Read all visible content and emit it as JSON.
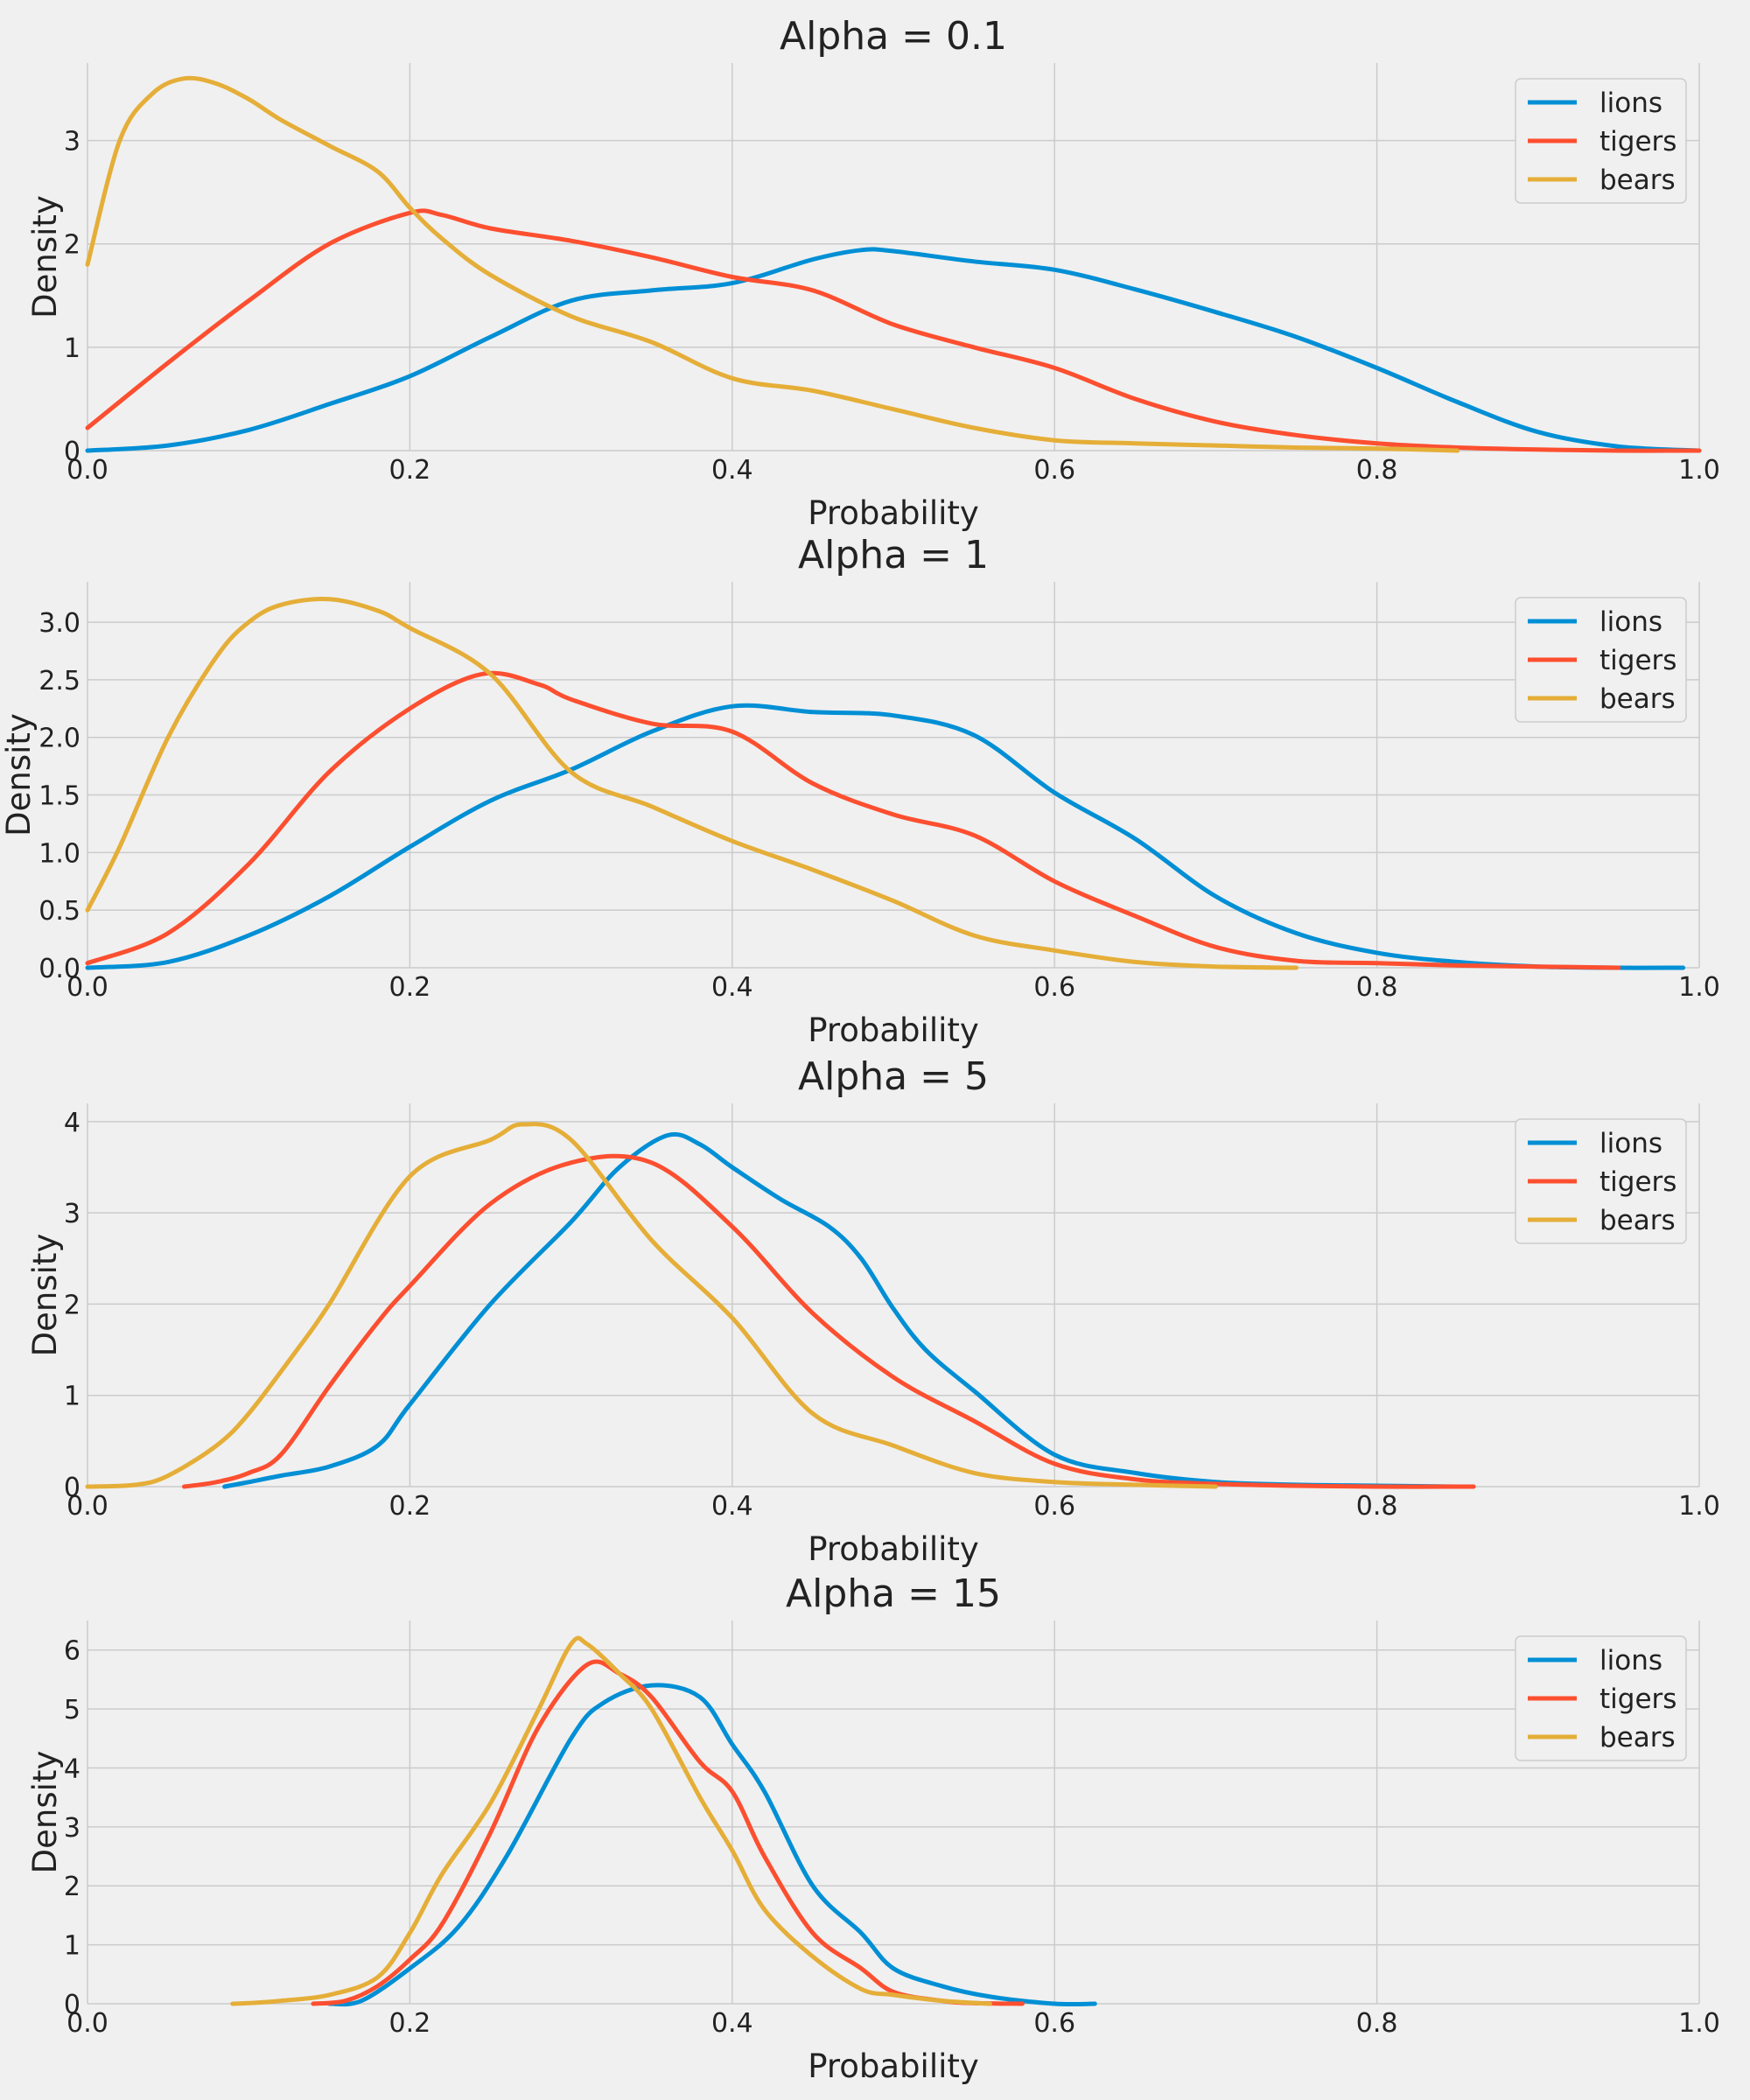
{
  "figure": {
    "background": "#f0f0f0"
  },
  "colors": {
    "lions": "#008fd5",
    "tigers": "#fc4f30",
    "bears": "#e5ae38"
  },
  "chart_data": [
    {
      "type": "line",
      "title": "Alpha = 0.1",
      "xlabel": "Probability",
      "ylabel": "Density",
      "xlim": [
        0,
        1
      ],
      "ylim": [
        0,
        3.75
      ],
      "xticks": [
        0,
        0.2,
        0.4,
        0.6,
        0.8,
        1.0
      ],
      "xtick_labels": [
        "0.0",
        "0.2",
        "0.4",
        "0.6",
        "0.8",
        "1.0"
      ],
      "yticks": [
        0,
        1,
        2,
        3
      ],
      "ytick_labels": [
        "0",
        "1",
        "2",
        "3"
      ],
      "grid": true,
      "legend_position": "top-right",
      "series": [
        {
          "name": "lions",
          "x": [
            0,
            0.05,
            0.1,
            0.15,
            0.2,
            0.25,
            0.3,
            0.35,
            0.4,
            0.45,
            0.48,
            0.5,
            0.55,
            0.6,
            0.65,
            0.7,
            0.75,
            0.8,
            0.85,
            0.9,
            0.95,
            1.0
          ],
          "y": [
            0,
            0.05,
            0.2,
            0.45,
            0.72,
            1.1,
            1.45,
            1.55,
            1.62,
            1.85,
            1.94,
            1.93,
            1.83,
            1.75,
            1.56,
            1.34,
            1.1,
            0.8,
            0.47,
            0.18,
            0.04,
            0
          ]
        },
        {
          "name": "tigers",
          "x": [
            0,
            0.05,
            0.1,
            0.15,
            0.2,
            0.22,
            0.25,
            0.3,
            0.35,
            0.4,
            0.45,
            0.5,
            0.55,
            0.6,
            0.65,
            0.7,
            0.75,
            0.8,
            0.85,
            0.9,
            0.95,
            1.0
          ],
          "y": [
            0.22,
            0.85,
            1.45,
            2.0,
            2.3,
            2.28,
            2.15,
            2.03,
            1.87,
            1.68,
            1.55,
            1.22,
            1.0,
            0.8,
            0.5,
            0.28,
            0.15,
            0.07,
            0.03,
            0.01,
            0,
            0
          ]
        },
        {
          "name": "bears",
          "x": [
            0,
            0.02,
            0.04,
            0.06,
            0.08,
            0.1,
            0.12,
            0.15,
            0.18,
            0.2,
            0.22,
            0.25,
            0.3,
            0.35,
            0.4,
            0.45,
            0.5,
            0.55,
            0.6,
            0.65,
            0.7,
            0.75,
            0.8,
            0.85
          ],
          "y": [
            1.8,
            3.0,
            3.45,
            3.6,
            3.55,
            3.4,
            3.2,
            2.95,
            2.7,
            2.35,
            2.05,
            1.7,
            1.3,
            1.05,
            0.7,
            0.58,
            0.4,
            0.22,
            0.1,
            0.07,
            0.05,
            0.03,
            0.02,
            0
          ]
        }
      ]
    },
    {
      "type": "line",
      "title": "Alpha = 1",
      "xlabel": "Probability",
      "ylabel": "Density",
      "xlim": [
        0,
        1
      ],
      "ylim": [
        0,
        3.35
      ],
      "xticks": [
        0,
        0.2,
        0.4,
        0.6,
        0.8,
        1.0
      ],
      "xtick_labels": [
        "0.0",
        "0.2",
        "0.4",
        "0.6",
        "0.8",
        "1.0"
      ],
      "yticks": [
        0,
        0.5,
        1.0,
        1.5,
        2.0,
        2.5,
        3.0
      ],
      "ytick_labels": [
        "0.0",
        "0.5",
        "1.0",
        "1.5",
        "2.0",
        "2.5",
        "3.0"
      ],
      "grid": true,
      "legend_position": "top-right",
      "series": [
        {
          "name": "lions",
          "x": [
            0,
            0.05,
            0.1,
            0.15,
            0.2,
            0.25,
            0.3,
            0.35,
            0.4,
            0.45,
            0.5,
            0.55,
            0.6,
            0.65,
            0.7,
            0.75,
            0.8,
            0.85,
            0.9,
            0.95,
            0.99
          ],
          "y": [
            0,
            0.05,
            0.28,
            0.62,
            1.05,
            1.45,
            1.72,
            2.05,
            2.27,
            2.22,
            2.19,
            2.02,
            1.52,
            1.12,
            0.62,
            0.3,
            0.13,
            0.05,
            0.01,
            0,
            0
          ]
        },
        {
          "name": "tigers",
          "x": [
            0,
            0.05,
            0.1,
            0.15,
            0.2,
            0.245,
            0.28,
            0.3,
            0.35,
            0.4,
            0.45,
            0.5,
            0.55,
            0.6,
            0.65,
            0.7,
            0.75,
            0.8,
            0.85,
            0.9,
            0.95
          ],
          "y": [
            0.04,
            0.3,
            0.9,
            1.7,
            2.25,
            2.55,
            2.46,
            2.33,
            2.12,
            2.05,
            1.6,
            1.33,
            1.15,
            0.75,
            0.45,
            0.18,
            0.06,
            0.04,
            0.02,
            0.01,
            0
          ]
        },
        {
          "name": "bears",
          "x": [
            0,
            0.02,
            0.05,
            0.08,
            0.1,
            0.12,
            0.15,
            0.18,
            0.2,
            0.25,
            0.3,
            0.35,
            0.4,
            0.45,
            0.5,
            0.55,
            0.6,
            0.65,
            0.7,
            0.75
          ],
          "y": [
            0.5,
            1.05,
            2.0,
            2.7,
            3.0,
            3.15,
            3.2,
            3.1,
            2.95,
            2.55,
            1.7,
            1.4,
            1.1,
            0.85,
            0.58,
            0.28,
            0.15,
            0.05,
            0.01,
            0
          ]
        }
      ]
    },
    {
      "type": "line",
      "title": "Alpha = 5",
      "xlabel": "Probability",
      "ylabel": "Density",
      "xlim": [
        0,
        1
      ],
      "ylim": [
        0,
        4.2
      ],
      "xticks": [
        0,
        0.2,
        0.4,
        0.6,
        0.8,
        1.0
      ],
      "xtick_labels": [
        "0.0",
        "0.2",
        "0.4",
        "0.6",
        "0.8",
        "1.0"
      ],
      "yticks": [
        0,
        1,
        2,
        3,
        4
      ],
      "ytick_labels": [
        "0",
        "1",
        "2",
        "3",
        "4"
      ],
      "grid": true,
      "legend_position": "top-right",
      "series": [
        {
          "name": "lions",
          "x": [
            0.085,
            0.1,
            0.12,
            0.15,
            0.18,
            0.2,
            0.25,
            0.3,
            0.33,
            0.36,
            0.38,
            0.4,
            0.43,
            0.46,
            0.48,
            0.5,
            0.52,
            0.55,
            0.6,
            0.65,
            0.7,
            0.75,
            0.8,
            0.85
          ],
          "y": [
            0,
            0.05,
            0.12,
            0.22,
            0.45,
            0.9,
            2.0,
            2.9,
            3.5,
            3.85,
            3.75,
            3.5,
            3.15,
            2.85,
            2.5,
            1.95,
            1.5,
            1.05,
            0.35,
            0.15,
            0.05,
            0.02,
            0.01,
            0
          ]
        },
        {
          "name": "tigers",
          "x": [
            0.06,
            0.08,
            0.1,
            0.12,
            0.15,
            0.18,
            0.2,
            0.25,
            0.3,
            0.35,
            0.4,
            0.45,
            0.5,
            0.55,
            0.6,
            0.65,
            0.7,
            0.75,
            0.8,
            0.86
          ],
          "y": [
            0,
            0.05,
            0.15,
            0.35,
            1.1,
            1.8,
            2.2,
            3.1,
            3.55,
            3.55,
            2.85,
            1.9,
            1.2,
            0.72,
            0.25,
            0.08,
            0.03,
            0.01,
            0,
            0
          ]
        },
        {
          "name": "bears",
          "x": [
            0,
            0.03,
            0.05,
            0.08,
            0.1,
            0.13,
            0.15,
            0.2,
            0.25,
            0.27,
            0.3,
            0.35,
            0.4,
            0.45,
            0.5,
            0.55,
            0.6,
            0.65,
            0.7
          ],
          "y": [
            0,
            0.02,
            0.12,
            0.45,
            0.8,
            1.5,
            2.0,
            3.4,
            3.8,
            3.97,
            3.8,
            2.7,
            1.85,
            0.8,
            0.45,
            0.15,
            0.05,
            0.02,
            0
          ]
        }
      ]
    },
    {
      "type": "line",
      "title": "Alpha = 15",
      "xlabel": "Probability",
      "ylabel": "Density",
      "xlim": [
        0,
        1
      ],
      "ylim": [
        0,
        6.5
      ],
      "xticks": [
        0,
        0.2,
        0.4,
        0.6,
        0.8,
        1.0
      ],
      "xtick_labels": [
        "0.0",
        "0.2",
        "0.4",
        "0.6",
        "0.8",
        "1.0"
      ],
      "yticks": [
        0,
        1,
        2,
        3,
        4,
        5,
        6
      ],
      "ytick_labels": [
        "0",
        "1",
        "2",
        "3",
        "4",
        "5",
        "6"
      ],
      "grid": true,
      "legend_position": "top-right",
      "series": [
        {
          "name": "lions",
          "x": [
            0.15,
            0.17,
            0.2,
            0.23,
            0.26,
            0.3,
            0.32,
            0.35,
            0.38,
            0.4,
            0.42,
            0.45,
            0.48,
            0.5,
            0.53,
            0.56,
            0.6,
            0.625
          ],
          "y": [
            0,
            0.05,
            0.6,
            1.3,
            2.5,
            4.5,
            5.1,
            5.4,
            5.2,
            4.4,
            3.6,
            2.0,
            1.2,
            0.6,
            0.3,
            0.12,
            0,
            0
          ]
        },
        {
          "name": "tigers",
          "x": [
            0.14,
            0.16,
            0.18,
            0.2,
            0.22,
            0.25,
            0.28,
            0.31,
            0.33,
            0.35,
            0.38,
            0.4,
            0.42,
            0.45,
            0.48,
            0.5,
            0.53,
            0.55,
            0.58
          ],
          "y": [
            0,
            0.05,
            0.3,
            0.75,
            1.35,
            2.9,
            4.7,
            5.75,
            5.6,
            5.2,
            4.1,
            3.6,
            2.5,
            1.2,
            0.6,
            0.2,
            0.05,
            0.01,
            0
          ]
        },
        {
          "name": "bears",
          "x": [
            0.09,
            0.1,
            0.12,
            0.15,
            0.18,
            0.2,
            0.22,
            0.25,
            0.28,
            0.3,
            0.31,
            0.33,
            0.35,
            0.38,
            0.4,
            0.42,
            0.45,
            0.48,
            0.5,
            0.53,
            0.56
          ],
          "y": [
            0,
            0.01,
            0.05,
            0.15,
            0.45,
            1.2,
            2.2,
            3.4,
            5.0,
            6.1,
            6.1,
            5.6,
            5.0,
            3.5,
            2.6,
            1.6,
            0.8,
            0.25,
            0.15,
            0.05,
            0
          ]
        }
      ]
    }
  ]
}
